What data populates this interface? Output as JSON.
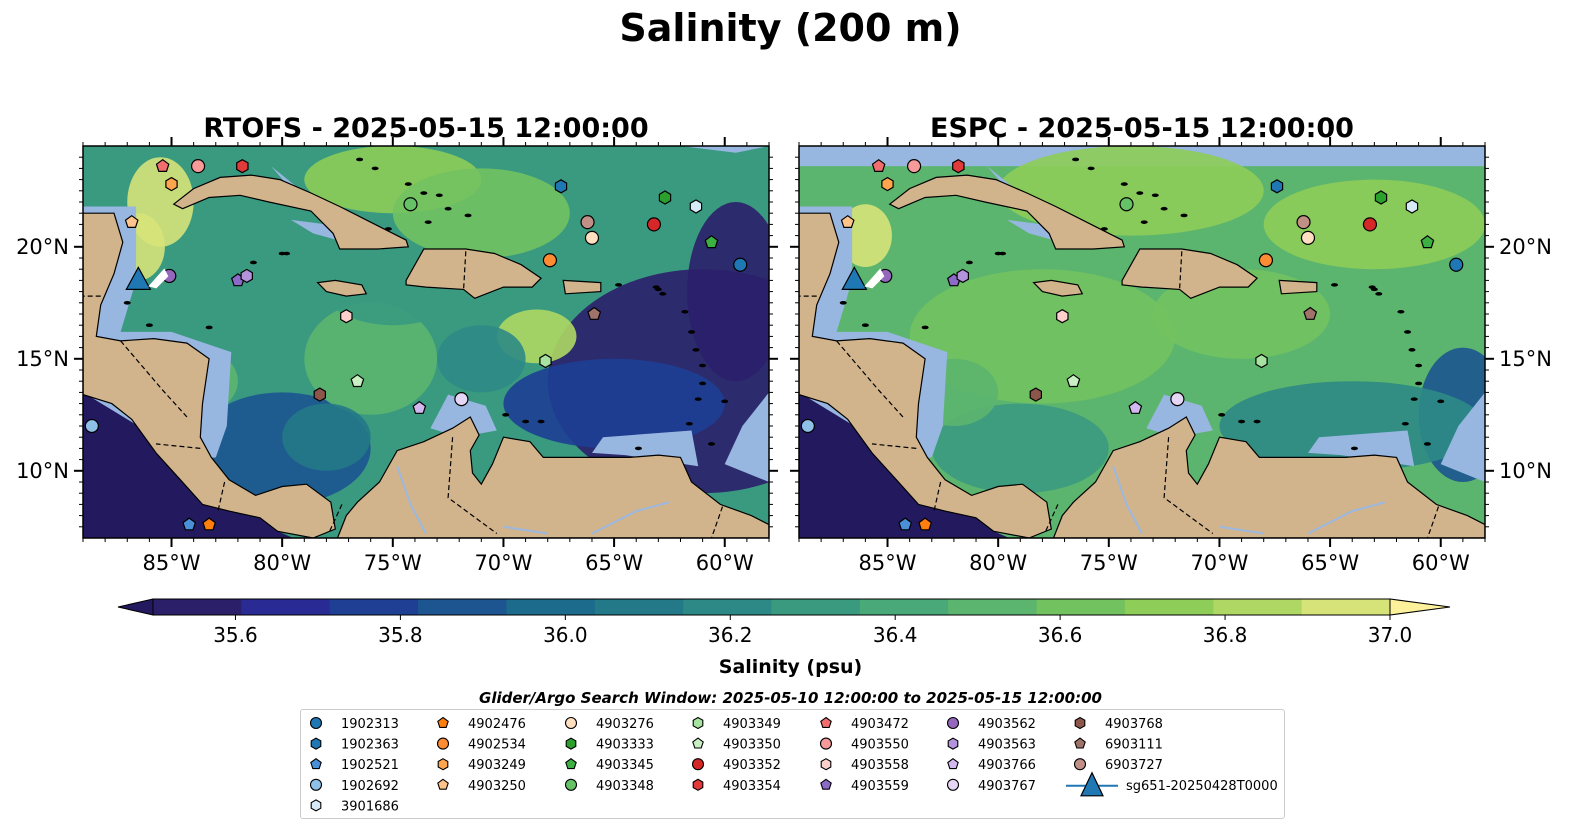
{
  "figure": {
    "title": "Salinity (200 m)"
  },
  "panels": [
    {
      "id": "rtofs",
      "title": "RTOFS - 2025-05-15 12:00:00",
      "model": "RTOFS"
    },
    {
      "id": "espc",
      "title": "ESPC - 2025-05-15 12:00:00",
      "model": "ESPC"
    }
  ],
  "map_extent": {
    "lon": [
      -89,
      -58
    ],
    "lat": [
      7,
      24.5
    ]
  },
  "axes": {
    "lon_ticks": [
      -85,
      -80,
      -75,
      -70,
      -65,
      -60
    ],
    "lon_labels": [
      "85°W",
      "80°W",
      "75°W",
      "70°W",
      "65°W",
      "60°W"
    ],
    "lat_ticks": [
      10,
      15,
      20
    ],
    "lat_labels": [
      "10°N",
      "15°N",
      "20°N"
    ]
  },
  "colorbar": {
    "label": "Salinity (psu)",
    "min": 35.5,
    "max": 37.0,
    "tick_values": [
      35.6,
      35.8,
      36.0,
      36.2,
      36.4,
      36.6,
      36.8,
      37.0
    ],
    "tick_labels": [
      "35.6",
      "35.8",
      "36.0",
      "36.2",
      "36.4",
      "36.6",
      "36.8",
      "37.0"
    ],
    "colors": [
      "#2b1f6a",
      "#2a2a95",
      "#1e3f94",
      "#1c5590",
      "#1c6a8c",
      "#237987",
      "#2d8985",
      "#3a9a80",
      "#4aa978",
      "#5cb56e",
      "#72c260",
      "#8dcd58",
      "#aed863",
      "#d6e379"
    ],
    "under_color": "#23195e",
    "over_color": "#fdf29b"
  },
  "map_colors": {
    "land": "#d2b48c",
    "ocean": "#97b6e0"
  },
  "search_window": "Glider/Argo Search Window: 2025-05-10 12:00:00 to 2025-05-15 12:00:00",
  "floats": [
    {
      "id": "1902313",
      "marker": "circle",
      "color": "#1f77b4",
      "lon": -59.3,
      "lat": 19.2
    },
    {
      "id": "1902363",
      "marker": "hexagon",
      "color": "#1f77b4",
      "lon": -67.4,
      "lat": 22.7
    },
    {
      "id": "1902521",
      "marker": "pentagon",
      "color": "#4a90d9",
      "lon": -84.2,
      "lat": 7.6
    },
    {
      "id": "1902692",
      "marker": "circle",
      "color": "#8fc1e8",
      "lon": -88.6,
      "lat": 12.0
    },
    {
      "id": "3901686",
      "marker": "hexagon",
      "color": "#d7eaf7",
      "lon": -61.3,
      "lat": 21.8
    },
    {
      "id": "4902476",
      "marker": "pentagon",
      "color": "#ff7f0e",
      "lon": -83.3,
      "lat": 7.6
    },
    {
      "id": "4902534",
      "marker": "circle",
      "color": "#ff8c33",
      "lon": -67.9,
      "lat": 19.4
    },
    {
      "id": "4903249",
      "marker": "hexagon",
      "color": "#ffa54d",
      "lon": -85.0,
      "lat": 22.8
    },
    {
      "id": "4903250",
      "marker": "pentagon",
      "color": "#ffc48c",
      "lon": -86.8,
      "lat": 21.1
    },
    {
      "id": "4903276",
      "marker": "circle",
      "color": "#ffdfc0",
      "lon": -66.0,
      "lat": 20.4
    },
    {
      "id": "4903333",
      "marker": "hexagon",
      "color": "#2ca02c",
      "lon": -62.7,
      "lat": 22.2
    },
    {
      "id": "4903345",
      "marker": "pentagon",
      "color": "#3cb043",
      "lon": -60.6,
      "lat": 20.2
    },
    {
      "id": "4903348",
      "marker": "circle",
      "color": "#66c266",
      "lon": -74.2,
      "lat": 21.9
    },
    {
      "id": "4903349",
      "marker": "hexagon",
      "color": "#a6e3a1",
      "lon": -68.1,
      "lat": 14.9
    },
    {
      "id": "4903350",
      "marker": "pentagon",
      "color": "#c9f0c3",
      "lon": -76.6,
      "lat": 14.0
    },
    {
      "id": "4903352",
      "marker": "circle",
      "color": "#d62728",
      "lon": -63.2,
      "lat": 21.0
    },
    {
      "id": "4903354",
      "marker": "hexagon",
      "color": "#e03a3a",
      "lon": -81.8,
      "lat": 23.6
    },
    {
      "id": "4903472",
      "marker": "pentagon",
      "color": "#f06e6e",
      "lon": -85.4,
      "lat": 23.6
    },
    {
      "id": "4903550",
      "marker": "circle",
      "color": "#f79a9a",
      "lon": -83.8,
      "lat": 23.6
    },
    {
      "id": "4903558",
      "marker": "hexagon",
      "color": "#fdd0cc",
      "lon": -77.1,
      "lat": 16.9
    },
    {
      "id": "4903559",
      "marker": "pentagon",
      "color": "#8c6bc8",
      "lon": -82.0,
      "lat": 18.5
    },
    {
      "id": "4903562",
      "marker": "circle",
      "color": "#9467bd",
      "lon": -85.1,
      "lat": 18.7
    },
    {
      "id": "4903563",
      "marker": "hexagon",
      "color": "#b394dc",
      "lon": -81.6,
      "lat": 18.7
    },
    {
      "id": "4903766",
      "marker": "pentagon",
      "color": "#d2b8ef",
      "lon": -73.8,
      "lat": 12.8
    },
    {
      "id": "4903767",
      "marker": "circle",
      "color": "#e6d6f5",
      "lon": -71.9,
      "lat": 13.2
    },
    {
      "id": "4903768",
      "marker": "hexagon",
      "color": "#8c564b",
      "lon": -78.3,
      "lat": 13.4
    },
    {
      "id": "6903111",
      "marker": "pentagon",
      "color": "#a0736a",
      "lon": -65.9,
      "lat": 17.0
    },
    {
      "id": "6903727",
      "marker": "circle",
      "color": "#c08f86",
      "lon": -66.2,
      "lat": 21.1
    }
  ],
  "glider": {
    "id": "sg651-20250428T0000",
    "marker": "triangle",
    "color": "#1f77b4",
    "lon": -86.5,
    "lat": 18.5
  },
  "legend": {
    "columns": [
      [
        "1902313",
        "1902363",
        "1902521",
        "1902692",
        "3901686"
      ],
      [
        "4902476",
        "4902534",
        "4903249",
        "4903250"
      ],
      [
        "4903276",
        "4903333",
        "4903345",
        "4903348"
      ],
      [
        "4903349",
        "4903350",
        "4903352",
        "4903354"
      ],
      [
        "4903472",
        "4903550",
        "4903558",
        "4903559"
      ],
      [
        "4903562",
        "4903563",
        "4903766",
        "4903767"
      ],
      [
        "4903768",
        "6903111",
        "6903727",
        "sg651-20250428T0000"
      ]
    ]
  }
}
